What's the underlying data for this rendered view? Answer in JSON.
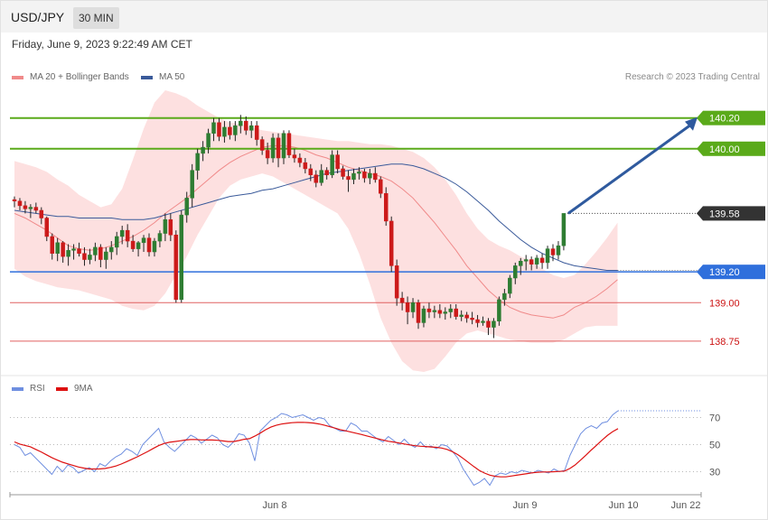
{
  "header": {
    "symbol": "USD/JPY",
    "timeframe": "30 MIN",
    "datetime": "Friday, June 9, 2023 9:22:49 AM CET"
  },
  "legend": {
    "ma20": "MA 20 + Bollinger Bands",
    "ma50": "MA 50",
    "rsi": "RSI",
    "rsi_ma": "9MA"
  },
  "credit": "Research © 2023 Trading Central",
  "colors": {
    "bullish": "#2e7d32",
    "bearish": "#cc1a1a",
    "band_fill": "#fde0e0",
    "ma20": "#f08a8a",
    "ma50": "#3a5a9a",
    "resistance": "#5aaa1a",
    "pivot": "#2f6fdc",
    "support": "#e06060",
    "current": "#333333",
    "rsi_line": "#6f8fe0",
    "rsi_ma": "#dd1111",
    "arrow": "#2f5a9e"
  },
  "chart_data": [
    {
      "type": "candlestick",
      "y_range": [
        138.55,
        140.38
      ],
      "x_labels": [
        "Jun 8",
        "Jun 9",
        "Jun 10",
        "Jun 22"
      ],
      "levels": [
        {
          "label": "140.20",
          "value": 140.2,
          "kind": "resistance"
        },
        {
          "label": "140.00",
          "value": 140.0,
          "kind": "resistance"
        },
        {
          "label": "139.58",
          "value": 139.58,
          "kind": "current"
        },
        {
          "label": "139.20",
          "value": 139.2,
          "kind": "pivot"
        },
        {
          "label": "139.00",
          "value": 139.0,
          "kind": "support"
        },
        {
          "label": "138.75",
          "value": 138.75,
          "kind": "support"
        }
      ],
      "arrow": {
        "from": 139.58,
        "to": 140.2
      },
      "candles": [
        [
          139.67,
          139.69,
          139.62,
          139.66
        ],
        [
          139.66,
          139.68,
          139.6,
          139.63
        ],
        [
          139.63,
          139.66,
          139.58,
          139.61
        ],
        [
          139.61,
          139.64,
          139.55,
          139.62
        ],
        [
          139.62,
          139.65,
          139.58,
          139.6
        ],
        [
          139.6,
          139.62,
          139.51,
          139.55
        ],
        [
          139.55,
          139.56,
          139.4,
          139.43
        ],
        [
          139.43,
          139.45,
          139.28,
          139.32
        ],
        [
          139.32,
          139.42,
          139.27,
          139.39
        ],
        [
          139.39,
          139.4,
          139.26,
          139.3
        ],
        [
          139.3,
          139.38,
          139.24,
          139.34
        ],
        [
          139.34,
          139.38,
          139.28,
          139.35
        ],
        [
          139.35,
          139.39,
          139.3,
          139.32
        ],
        [
          139.32,
          139.36,
          139.24,
          139.28
        ],
        [
          139.28,
          139.35,
          139.25,
          139.31
        ],
        [
          139.31,
          139.39,
          139.27,
          139.36
        ],
        [
          139.36,
          139.38,
          139.23,
          139.28
        ],
        [
          139.28,
          139.36,
          139.22,
          139.33
        ],
        [
          139.33,
          139.4,
          139.28,
          139.36
        ],
        [
          139.36,
          139.46,
          139.31,
          139.43
        ],
        [
          139.43,
          139.5,
          139.38,
          139.47
        ],
        [
          139.47,
          139.51,
          139.36,
          139.4
        ],
        [
          139.4,
          139.44,
          139.33,
          139.35
        ],
        [
          139.35,
          139.4,
          139.3,
          139.39
        ],
        [
          139.39,
          139.44,
          139.33,
          139.42
        ],
        [
          139.42,
          139.45,
          139.3,
          139.33
        ],
        [
          139.33,
          139.42,
          139.3,
          139.4
        ],
        [
          139.4,
          139.47,
          139.36,
          139.45
        ],
        [
          139.45,
          139.58,
          139.4,
          139.54
        ],
        [
          139.54,
          139.58,
          139.4,
          139.44
        ],
        [
          139.44,
          139.47,
          139.0,
          139.02
        ],
        [
          139.02,
          139.6,
          139.0,
          139.57
        ],
        [
          139.57,
          139.72,
          139.52,
          139.68
        ],
        [
          139.68,
          139.9,
          139.62,
          139.86
        ],
        [
          139.86,
          140.0,
          139.8,
          139.97
        ],
        [
          139.97,
          140.05,
          139.92,
          140.01
        ],
        [
          140.01,
          140.13,
          139.97,
          140.1
        ],
        [
          140.1,
          140.2,
          140.05,
          140.17
        ],
        [
          140.17,
          140.2,
          140.05,
          140.08
        ],
        [
          140.08,
          140.18,
          140.04,
          140.14
        ],
        [
          140.14,
          140.18,
          140.06,
          140.09
        ],
        [
          140.09,
          140.18,
          140.05,
          140.15
        ],
        [
          140.15,
          140.22,
          140.1,
          140.18
        ],
        [
          140.18,
          140.21,
          140.09,
          140.12
        ],
        [
          140.12,
          140.18,
          140.07,
          140.15
        ],
        [
          140.15,
          140.18,
          140.02,
          140.06
        ],
        [
          140.06,
          140.08,
          139.96,
          139.99
        ],
        [
          139.99,
          140.04,
          139.9,
          139.94
        ],
        [
          139.94,
          140.1,
          139.91,
          140.07
        ],
        [
          140.07,
          140.1,
          139.88,
          139.94
        ],
        [
          139.94,
          140.12,
          139.9,
          140.1
        ],
        [
          140.1,
          140.12,
          139.94,
          139.96
        ],
        [
          139.96,
          140.0,
          139.91,
          139.94
        ],
        [
          139.94,
          139.97,
          139.88,
          139.91
        ],
        [
          139.91,
          139.94,
          139.84,
          139.87
        ],
        [
          139.87,
          139.9,
          139.79,
          139.83
        ],
        [
          139.83,
          139.86,
          139.75,
          139.78
        ],
        [
          139.78,
          139.9,
          139.76,
          139.86
        ],
        [
          139.86,
          139.88,
          139.8,
          139.83
        ],
        [
          139.83,
          139.99,
          139.81,
          139.96
        ],
        [
          139.96,
          139.99,
          139.84,
          139.87
        ],
        [
          139.87,
          139.89,
          139.8,
          139.82
        ],
        [
          139.82,
          139.86,
          139.72,
          139.8
        ],
        [
          139.8,
          139.87,
          139.77,
          139.84
        ],
        [
          139.84,
          139.88,
          139.8,
          139.85
        ],
        [
          139.85,
          139.87,
          139.78,
          139.81
        ],
        [
          139.81,
          139.87,
          139.77,
          139.84
        ],
        [
          139.84,
          139.88,
          139.78,
          139.8
        ],
        [
          139.8,
          139.82,
          139.68,
          139.71
        ],
        [
          139.71,
          139.75,
          139.5,
          139.53
        ],
        [
          139.53,
          139.56,
          139.2,
          139.24
        ],
        [
          139.24,
          139.28,
          138.98,
          139.03
        ],
        [
          139.03,
          139.07,
          138.95,
          139.0
        ],
        [
          139.0,
          139.04,
          138.86,
          138.94
        ],
        [
          138.94,
          139.03,
          138.9,
          139.0
        ],
        [
          139.0,
          139.02,
          138.83,
          138.87
        ],
        [
          138.87,
          138.98,
          138.84,
          138.96
        ],
        [
          138.96,
          139.0,
          138.9,
          138.94
        ],
        [
          138.94,
          138.98,
          138.9,
          138.95
        ],
        [
          138.95,
          138.99,
          138.9,
          138.93
        ],
        [
          138.93,
          138.97,
          138.89,
          138.94
        ],
        [
          138.94,
          138.99,
          138.9,
          138.96
        ],
        [
          138.96,
          138.99,
          138.89,
          138.91
        ],
        [
          138.91,
          138.95,
          138.88,
          138.92
        ],
        [
          138.92,
          138.94,
          138.87,
          138.9
        ],
        [
          138.9,
          138.94,
          138.86,
          138.89
        ],
        [
          138.89,
          138.92,
          138.84,
          138.87
        ],
        [
          138.87,
          138.91,
          138.85,
          138.88
        ],
        [
          138.88,
          138.9,
          138.79,
          138.84
        ],
        [
          138.84,
          138.9,
          138.77,
          138.88
        ],
        [
          138.88,
          139.04,
          138.85,
          139.02
        ],
        [
          139.02,
          139.09,
          138.98,
          139.06
        ],
        [
          139.06,
          139.18,
          139.03,
          139.16
        ],
        [
          139.16,
          139.26,
          139.12,
          139.24
        ],
        [
          139.24,
          139.29,
          139.18,
          139.27
        ],
        [
          139.27,
          139.31,
          139.21,
          139.28
        ],
        [
          139.28,
          139.3,
          139.21,
          139.25
        ],
        [
          139.25,
          139.31,
          139.22,
          139.29
        ],
        [
          139.29,
          139.32,
          139.22,
          139.26
        ],
        [
          139.26,
          139.37,
          139.22,
          139.35
        ],
        [
          139.35,
          139.38,
          139.27,
          139.31
        ],
        [
          139.31,
          139.4,
          139.28,
          139.37
        ],
        [
          139.37,
          139.58,
          139.34,
          139.58
        ]
      ],
      "ma20": [
        139.58,
        139.55,
        139.51,
        139.47,
        139.42,
        139.37,
        139.35,
        139.34,
        139.35,
        139.37,
        139.4,
        139.43,
        139.47,
        139.52,
        139.58,
        139.63,
        139.68,
        139.74,
        139.8,
        139.86,
        139.91,
        139.95,
        139.98,
        140.01,
        140.02,
        140.02,
        140.01,
        139.99,
        139.96,
        139.94,
        139.91,
        139.88,
        139.86,
        139.84,
        139.82,
        139.79,
        139.74,
        139.68,
        139.6,
        139.52,
        139.43,
        139.34,
        139.24,
        139.16,
        139.08,
        139.02,
        138.97,
        138.94,
        138.92,
        138.91,
        138.9,
        138.92,
        138.97,
        139.0,
        139.04,
        139.09,
        139.15
      ],
      "ma50": [
        139.6,
        139.59,
        139.58,
        139.57,
        139.56,
        139.56,
        139.55,
        139.55,
        139.55,
        139.55,
        139.54,
        139.54,
        139.54,
        139.55,
        139.57,
        139.59,
        139.61,
        139.63,
        139.65,
        139.67,
        139.69,
        139.7,
        139.71,
        139.73,
        139.74,
        139.76,
        139.78,
        139.8,
        139.82,
        139.84,
        139.85,
        139.86,
        139.87,
        139.88,
        139.89,
        139.9,
        139.9,
        139.89,
        139.87,
        139.84,
        139.81,
        139.77,
        139.72,
        139.66,
        139.6,
        139.53,
        139.47,
        139.41,
        139.36,
        139.32,
        139.29,
        139.26,
        139.24,
        139.23,
        139.22,
        139.21,
        139.21
      ],
      "bb_upper": [
        139.92,
        139.9,
        139.88,
        139.85,
        139.8,
        139.76,
        139.7,
        139.66,
        139.62,
        139.64,
        139.74,
        139.93,
        140.13,
        140.3,
        140.38,
        140.36,
        140.33,
        140.28,
        140.24,
        140.2,
        140.17,
        140.16,
        140.14,
        140.12,
        140.11,
        140.1,
        140.09,
        140.08,
        140.07,
        140.06,
        140.05,
        140.05,
        140.04,
        140.03,
        140.03,
        140.02,
        140.0,
        139.98,
        139.94,
        139.88,
        139.8,
        139.7,
        139.58,
        139.48,
        139.41,
        139.37,
        139.34,
        139.3,
        139.27,
        139.22,
        139.18,
        139.16,
        139.18,
        139.25,
        139.33,
        139.42,
        139.52
      ],
      "bb_lower": [
        139.22,
        139.17,
        139.14,
        139.12,
        139.1,
        139.09,
        139.08,
        139.06,
        139.04,
        139.02,
        138.98,
        138.96,
        138.95,
        138.98,
        139.06,
        139.18,
        139.3,
        139.44,
        139.56,
        139.68,
        139.76,
        139.8,
        139.82,
        139.84,
        139.82,
        139.78,
        139.74,
        139.7,
        139.66,
        139.62,
        139.58,
        139.48,
        139.32,
        139.12,
        138.9,
        138.74,
        138.62,
        138.56,
        138.55,
        138.57,
        138.65,
        138.74,
        138.8,
        138.82,
        138.8,
        138.78,
        138.76,
        138.75,
        138.74,
        138.74,
        138.74,
        138.76,
        138.8,
        138.84,
        138.85,
        138.85,
        138.85
      ]
    },
    {
      "type": "line",
      "name": "RSI",
      "y_range": [
        15,
        85
      ],
      "levels": [
        70,
        50,
        30
      ],
      "rsi": [
        50,
        48,
        42,
        44,
        40,
        36,
        32,
        28,
        34,
        30,
        35,
        33,
        29,
        31,
        33,
        30,
        36,
        34,
        38,
        41,
        43,
        47,
        45,
        42,
        50,
        54,
        58,
        62,
        52,
        48,
        45,
        49,
        53,
        57,
        55,
        51,
        54,
        57,
        55,
        50,
        48,
        52,
        58,
        57,
        51,
        38,
        60,
        64,
        68,
        70,
        73,
        72,
        70,
        71,
        72,
        70,
        68,
        70,
        69,
        64,
        62,
        60,
        60,
        66,
        64,
        60,
        60,
        57,
        54,
        52,
        56,
        53,
        50,
        54,
        50,
        48,
        52,
        48,
        49,
        47,
        50,
        49,
        45,
        40,
        32,
        26,
        20,
        22,
        25,
        20,
        27,
        29,
        28,
        30,
        29,
        31,
        30,
        29,
        31,
        30,
        29,
        32,
        30,
        31,
        42,
        50,
        58,
        62,
        64,
        62,
        66,
        67,
        72,
        75
      ],
      "rsi_ma": [
        52,
        50.4,
        49.4,
        48.4,
        46.5,
        44.6,
        42.5,
        40.4,
        38.6,
        37.0,
        35.8,
        34.6,
        33.5,
        32.7,
        32.0,
        32.0,
        32.1,
        32.4,
        33.2,
        34.2,
        35.7,
        37.4,
        39.2,
        41.0,
        43.0,
        45.0,
        47.2,
        49.3,
        50.8,
        51.7,
        52.3,
        52.8,
        53.4,
        53.7,
        53.7,
        53.5,
        53.4,
        53.4,
        53.2,
        52.7,
        52.3,
        52.3,
        53.0,
        53.9,
        54.4,
        56.3,
        58.5,
        60.9,
        62.9,
        64.3,
        65.2,
        65.7,
        66.2,
        66.4,
        66.5,
        66.3,
        65.9,
        65.3,
        64.4,
        63.3,
        62.2,
        61.1,
        60.2,
        59.3,
        58.4,
        57.5,
        56.4,
        55.4,
        54.4,
        53.4,
        52.5,
        51.9,
        51.2,
        50.5,
        49.8,
        49.2,
        48.8,
        48.6,
        48.3,
        48.0,
        47.5,
        46.5,
        44.8,
        42.6,
        39.8,
        36.8,
        33.8,
        31.0,
        29.0,
        27.5,
        26.6,
        26.2,
        26.2,
        26.8,
        27.4,
        28.0,
        28.6,
        29.2,
        29.6,
        29.8,
        29.8,
        30.0,
        30.2,
        30.5,
        32.4,
        35.1,
        38.6,
        42.2,
        46.0,
        49.6,
        53.3,
        56.7,
        59.6,
        61.8
      ]
    }
  ]
}
